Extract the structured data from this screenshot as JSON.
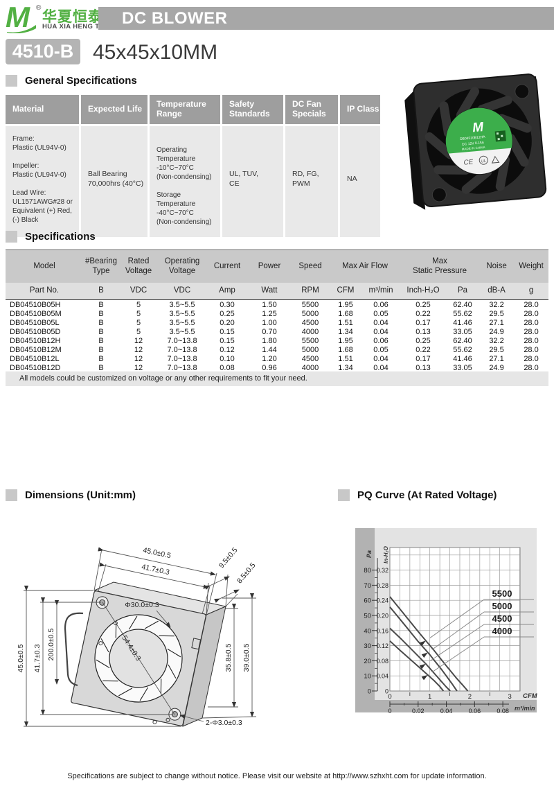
{
  "header": {
    "logo_m": "M",
    "registered": "®",
    "brand_cn": "华夏恒泰",
    "brand_en": "HUA XIA HENG TAI",
    "banner": "DC BLOWER"
  },
  "model": {
    "code": "4510-B",
    "size": "45x45x10MM"
  },
  "section_titles": {
    "general": "General Specifications",
    "specs": "Specifications",
    "dimensions": "Dimensions (Unit:mm)",
    "pq_curve": "PQ Curve (At Rated Voltage)"
  },
  "general_table": {
    "headers": [
      "Material",
      "Expected Life",
      "Temperature\nRange",
      "Safety\nStandards",
      "DC Fan\nSpecials",
      "IP Class"
    ],
    "material": "Frame:\nPlastic (UL94V-0)\n\nImpeller:\nPlastic (UL94V-0)\n\nLead Wire:\nUL1571AWG#28 or\nEquivalent (+) Red,\n(-) Black",
    "expected_life": "Ball Bearing\n70,000hrs (40°C)",
    "temperature": "Operating\nTemperature\n-10°C~70°C\n(Non-condensing)\n\nStorage\nTemperature\n-40°C~70°C\n(Non-condensing)",
    "safety": "UL, TUV,\nCE",
    "dc_fan_specials": "RD, FG,\nPWM",
    "ip_class": "NA"
  },
  "spec_table": {
    "header_row1": [
      "Model",
      "#Bearing\nType",
      "Rated\nVoltage",
      "Operating\nVoltage",
      "Current",
      "Power",
      "Speed",
      "Max Air Flow",
      "Max\nStatic Pressure",
      "Noise",
      "Weight"
    ],
    "header_row2": [
      "Part No.",
      "B",
      "VDC",
      "VDC",
      "Amp",
      "Watt",
      "RPM",
      "CFM",
      "m³/min",
      "Inch-H₂O",
      "Pa",
      "dB-A",
      "g"
    ],
    "rows": [
      [
        "DB04510B05H",
        "B",
        "5",
        "3.5~5.5",
        "0.30",
        "1.50",
        "5500",
        "1.95",
        "0.06",
        "0.25",
        "62.40",
        "32.2",
        "28.0"
      ],
      [
        "DB04510B05M",
        "B",
        "5",
        "3.5~5.5",
        "0.25",
        "1.25",
        "5000",
        "1.68",
        "0.05",
        "0.22",
        "55.62",
        "29.5",
        "28.0"
      ],
      [
        "DB04510B05L",
        "B",
        "5",
        "3.5~5.5",
        "0.20",
        "1.00",
        "4500",
        "1.51",
        "0.04",
        "0.17",
        "41.46",
        "27.1",
        "28.0"
      ],
      [
        "DB04510B05D",
        "B",
        "5",
        "3.5~5.5",
        "0.15",
        "0.70",
        "4000",
        "1.34",
        "0.04",
        "0.13",
        "33.05",
        "24.9",
        "28.0"
      ],
      [
        "DB04510B12H",
        "B",
        "12",
        "7.0~13.8",
        "0.15",
        "1.80",
        "5500",
        "1.95",
        "0.06",
        "0.25",
        "62.40",
        "32.2",
        "28.0"
      ],
      [
        "DB04510B12M",
        "B",
        "12",
        "7.0~13.8",
        "0.12",
        "1.44",
        "5000",
        "1.68",
        "0.05",
        "0.22",
        "55.62",
        "29.5",
        "28.0"
      ],
      [
        "DB04510B12L",
        "B",
        "12",
        "7.0~13.8",
        "0.10",
        "1.20",
        "4500",
        "1.51",
        "0.04",
        "0.17",
        "41.46",
        "27.1",
        "28.0"
      ],
      [
        "DB04510B12D",
        "B",
        "12",
        "7.0~13.8",
        "0.08",
        "0.96",
        "4000",
        "1.34",
        "0.04",
        "0.13",
        "33.05",
        "24.9",
        "28.0"
      ]
    ],
    "note": "All models could be customized on voltage or any other requirements to fit your need."
  },
  "product_photo": {
    "label_brand": "M",
    "label_model": "DB04510B12HA",
    "label_spec": "DC 12V  0.15A",
    "label_origin": "MADE IN CHINA",
    "cert_ce": "CE",
    "cert_ul": "UL"
  },
  "dimensions": {
    "top_width": "45.0±0.5",
    "top_inner": "41.7±0.3",
    "depth": "9.5±0.5",
    "depth_inner": "8.5±0.5",
    "left_height": "45.0±0.5",
    "left_inner": "41.7±0.3",
    "wire_length": "200.0±0.5",
    "inlet_dia": "Φ30.0±0.3",
    "hole_diagonal": "54.4±0.3",
    "right_inner": "35.8±0.5",
    "right_height": "39.0±0.5",
    "mount_holes": "2-Φ3.0±0.3"
  },
  "chart_data": {
    "type": "line",
    "title": "PQ Curve (At Rated Voltage)",
    "y_axis": {
      "label": "Pa",
      "ticks": [
        0,
        10,
        20,
        30,
        40,
        50,
        60,
        70,
        80
      ],
      "plot_max": 95
    },
    "y_axis2": {
      "label": "In-H₂O",
      "ticks": [
        "0",
        "0.04",
        "0.08",
        "0.12",
        "0.16",
        "0.20",
        "0.24",
        "0.28",
        "0.32"
      ]
    },
    "x_axis": {
      "label": "CFM",
      "ticks": [
        0,
        1,
        2,
        3
      ],
      "plot_max": 3.26
    },
    "x_axis2": {
      "label": "m³/min",
      "ticks": [
        "0",
        "0.02",
        "0.04",
        "0.06",
        "0.08"
      ]
    },
    "grid": {
      "x_step": 0.25,
      "y_step": 10
    },
    "legend_position": "right",
    "series": [
      {
        "name": "5500",
        "points": [
          [
            0,
            62.4
          ],
          [
            0.35,
            51
          ],
          [
            0.75,
            38
          ],
          [
            1.1,
            27
          ],
          [
            1.4,
            17
          ],
          [
            1.65,
            9
          ],
          [
            1.82,
            4
          ],
          [
            1.95,
            0
          ]
        ]
      },
      {
        "name": "5000",
        "points": [
          [
            0,
            55.6
          ],
          [
            0.3,
            46
          ],
          [
            0.7,
            33
          ],
          [
            1.0,
            24
          ],
          [
            1.3,
            14
          ],
          [
            1.55,
            5
          ],
          [
            1.68,
            0
          ]
        ]
      },
      {
        "name": "4500",
        "points": [
          [
            0,
            41.5
          ],
          [
            0.3,
            34
          ],
          [
            0.6,
            26
          ],
          [
            0.9,
            18
          ],
          [
            1.2,
            9
          ],
          [
            1.4,
            3
          ],
          [
            1.51,
            0
          ]
        ]
      },
      {
        "name": "4000",
        "points": [
          [
            0,
            33.1
          ],
          [
            0.25,
            27
          ],
          [
            0.55,
            20
          ],
          [
            0.85,
            13
          ],
          [
            1.1,
            7
          ],
          [
            1.25,
            3
          ],
          [
            1.34,
            0
          ]
        ]
      }
    ]
  },
  "footer": "Specifications are subject to change without notice. Please visit our website at http://www.szhxht.com for update information."
}
